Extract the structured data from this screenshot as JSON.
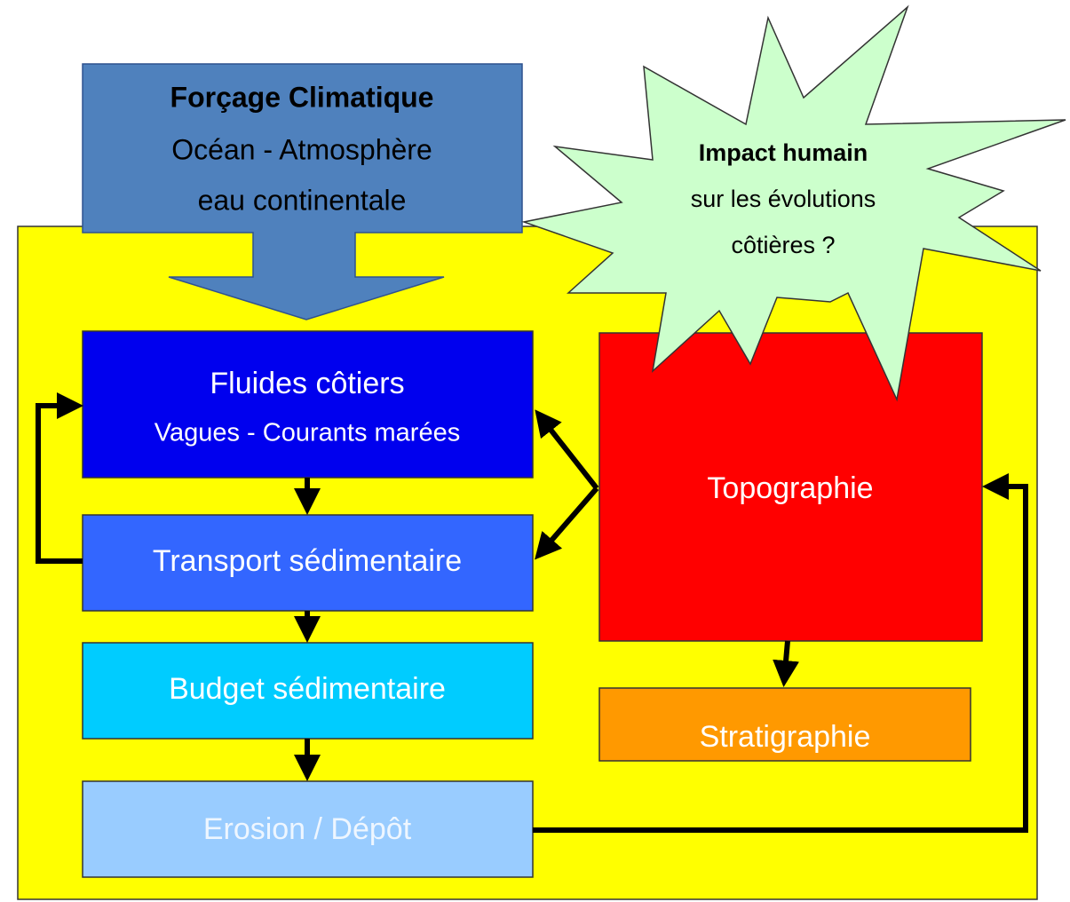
{
  "forcing": {
    "title": "Forçage Climatique",
    "lines": [
      "Océan - Atmosphère",
      "eau continentale"
    ]
  },
  "impact": {
    "title": "Impact humain",
    "lines": [
      "sur les évolutions",
      "côtières ?"
    ]
  },
  "boxes": {
    "fluides": {
      "title": "Fluides côtiers",
      "subtitle": "Vagues  - Courants marées"
    },
    "transport": "Transport sédimentaire",
    "budget": "Budget sédimentaire",
    "erosion": "Erosion / Dépôt",
    "topographie": "Topographie",
    "stratigraphie": "Stratigraphie"
  }
}
